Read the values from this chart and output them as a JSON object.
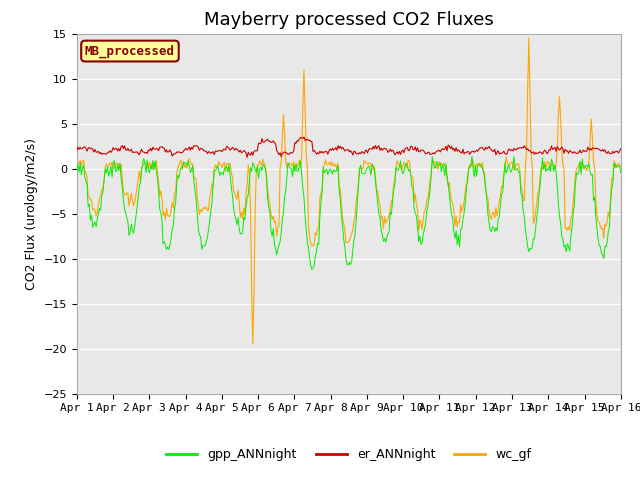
{
  "title": "Mayberry processed CO2 Fluxes",
  "ylabel": "CO2 Flux (urology/m2/s)",
  "ylim": [
    -25,
    15
  ],
  "yticks": [
    -25,
    -20,
    -15,
    -10,
    -5,
    0,
    5,
    10,
    15
  ],
  "xlim": [
    0,
    15
  ],
  "xtick_labels": [
    "Apr 1",
    "Apr 2",
    "Apr 3",
    "Apr 4",
    "Apr 5",
    "Apr 6",
    "Apr 7",
    "Apr 8",
    "Apr 9",
    "Apr 10",
    "Apr 11",
    "Apr 12",
    "Apr 13",
    "Apr 14",
    "Apr 15",
    "Apr 16"
  ],
  "color_gpp": "#00ee00",
  "color_er": "#cc0000",
  "color_wc": "#ffa500",
  "label_gpp": "gpp_ANNnight",
  "label_er": "er_ANNnight",
  "label_wc": "wc_gf",
  "inset_label": "MB_processed",
  "inset_bg": "#ffff99",
  "inset_border": "#880000",
  "background_color": "#e8e8e8",
  "n_points": 480,
  "title_fontsize": 13,
  "tick_fontsize": 8,
  "ylabel_fontsize": 9
}
